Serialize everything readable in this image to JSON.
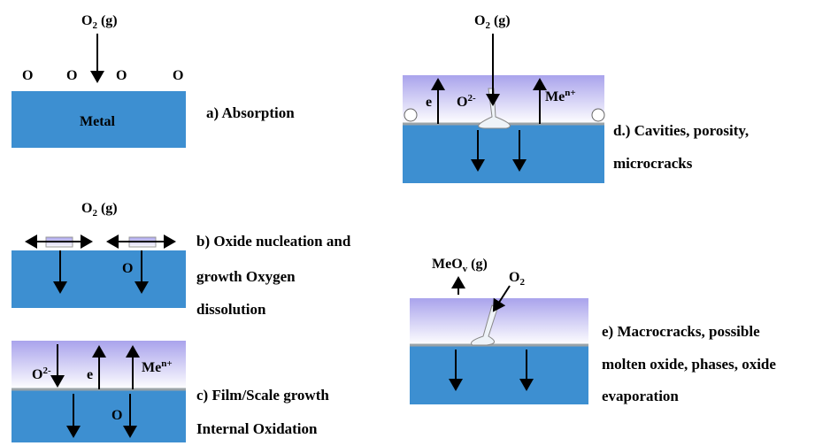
{
  "panel_a": {
    "gas": {
      "species": "O",
      "sub": "2",
      "phase": "(g)"
    },
    "atoms": [
      "O",
      "O",
      "O",
      "O"
    ],
    "metal": "Metal",
    "caption": [
      "a) Absorption"
    ]
  },
  "panel_b": {
    "gas": {
      "species": "O",
      "sub": "2",
      "phase": "(g)"
    },
    "atom": "O",
    "caption": [
      "b) Oxide nucleation and",
      "growth Oxygen",
      "dissolution"
    ]
  },
  "panel_c": {
    "ion_o": {
      "species": "O",
      "sup": "2-"
    },
    "electron": "e",
    "ion_me": {
      "species": "Me",
      "sup": "n+"
    },
    "atom": "O",
    "caption": [
      "c) Film/Scale growth",
      "Internal Oxidation"
    ]
  },
  "panel_d": {
    "gas": {
      "species": "O",
      "sub": "2",
      "phase": "(g)"
    },
    "electron": "e",
    "ion_o": {
      "species": "O",
      "sup": "2-"
    },
    "ion_me": {
      "species": "Me",
      "sup": "n+"
    },
    "caption": [
      "d.) Cavities, porosity,",
      "microcracks"
    ]
  },
  "panel_e": {
    "vapor": {
      "species": "MeO",
      "sub": "v",
      "phase": "(g)"
    },
    "gas": {
      "species": "O",
      "sub": "2"
    },
    "caption": [
      "e) Macrocracks, possible",
      "molten oxide, phases, oxide",
      "evaporation"
    ]
  }
}
